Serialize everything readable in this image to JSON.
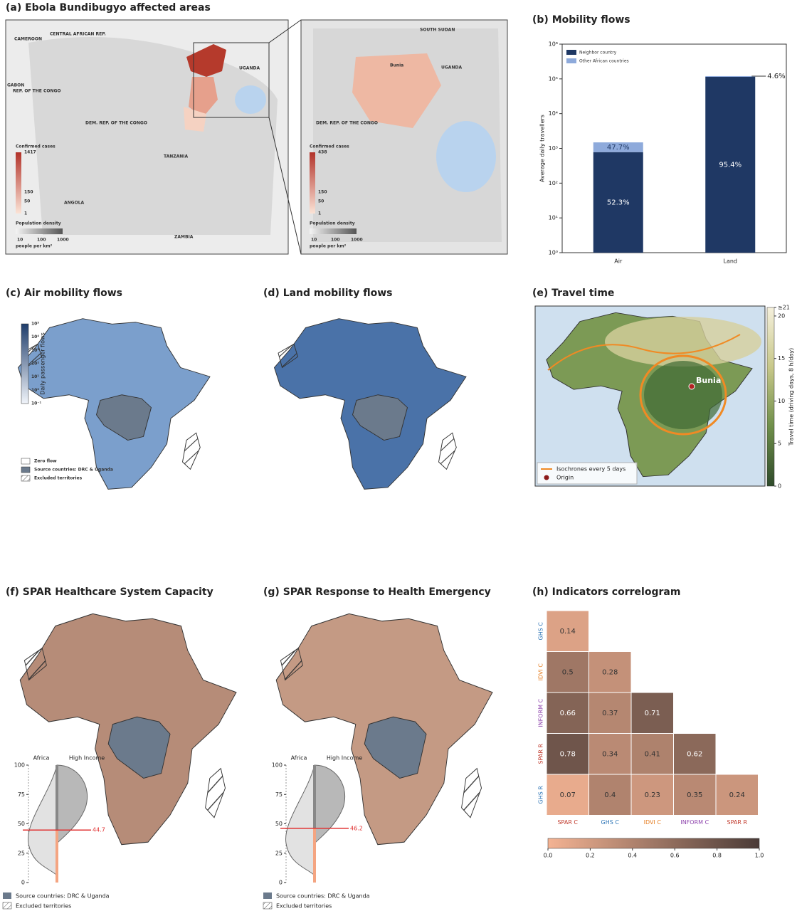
{
  "maps": {
    "a": {
      "title": "(a) Ebola Bundibugyo affected areas",
      "place_labels": [
        "CAMEROON",
        "CENTRAL AFRICAN REP.",
        "GABON",
        "REP. OF THE CONGO",
        "DEM. REP. OF THE CONGO",
        "UGANDA",
        "TANZANIA",
        "ANGOLA",
        "ZAMBIA"
      ],
      "inset_labels": [
        "DEM. REP. OF THE CONGO",
        "UGANDA",
        "SOUTH SUDAN",
        "Bunia"
      ],
      "cases_label": "Confirmed cases",
      "cases_ticks": [
        1417,
        150,
        50,
        1
      ],
      "inset_cases_ticks": [
        438,
        150,
        50,
        1
      ],
      "density_label": "Population density",
      "density_ticks": [
        10,
        100,
        1000
      ],
      "density_unit": "people per km²"
    },
    "c": {
      "title": "(c) Air mobility flows",
      "colorbar_label": "Daily passenger flows",
      "colorbar_ticks": [
        "10⁵",
        "10⁴",
        "10³",
        "10²",
        "10¹",
        "10⁰",
        "10⁻¹"
      ],
      "legend": [
        "Zero flow",
        "Source countries: DRC & Uganda",
        "Excluded territories"
      ]
    },
    "d": {
      "title": "(d) Land mobility flows"
    },
    "e": {
      "title": "(e) Travel time",
      "legend": [
        "Isochrones every 5 days",
        "Origin"
      ],
      "origin_label": "Bunia"
    },
    "f": {
      "title": "(f) SPAR Healthcare System Capacity",
      "legend": [
        "Source countries: DRC & Uganda",
        "Excluded territories"
      ]
    },
    "g": {
      "title": "(g) SPAR Response to Health Emergency",
      "legend": [
        "Source countries: DRC & Uganda",
        "Excluded territories"
      ]
    }
  },
  "chart_data": [
    {
      "type": "stacked_bar",
      "title": "(b) Mobility flows",
      "ylabel": "Average daily travellers",
      "categories": [
        "Air",
        "Land"
      ],
      "log": true,
      "legend": "upper left",
      "series": [
        {
          "name": "Neighbor country",
          "color": "#1f3864",
          "values": [
            780,
            114500
          ]
        },
        {
          "name": "Other African countries",
          "color": "#8eaadb",
          "values": [
            710,
            5500
          ]
        }
      ],
      "annotations": [
        "52.3%",
        "47.7%",
        "95.4%",
        "4.6%"
      ],
      "ylim": [
        1,
        1000000
      ],
      "yticks": [
        {
          "value": 1,
          "label": "10⁰"
        },
        {
          "value": 10,
          "label": "10¹"
        },
        {
          "value": 100,
          "label": "10²"
        },
        {
          "value": 1000,
          "label": "10³"
        },
        {
          "value": 10000,
          "label": "10⁴"
        },
        {
          "value": 100000,
          "label": "10⁵"
        },
        {
          "value": 1000000,
          "label": "10⁶"
        }
      ]
    },
    {
      "type": "colorbar",
      "ylabel": "Travel time  (driving days, 8 h/day)",
      "ylim": [
        0,
        21
      ],
      "yticks": [
        0,
        5,
        10,
        15,
        20,
        {
          "value": 21,
          "label": "≥21"
        }
      ],
      "colors": [
        "#2e4a2a",
        "#6f8f4a",
        "#c8c88a",
        "#f5f0dc"
      ]
    },
    {
      "type": "violin",
      "categories": [
        "Africa",
        "High Income"
      ],
      "ylim": [
        0,
        100
      ],
      "yticks": [
        0,
        25,
        50,
        75,
        100
      ],
      "reference_value": 44.7,
      "reference_color": "#e03030"
    },
    {
      "type": "violin",
      "categories": [
        "Africa",
        "High Income"
      ],
      "ylim": [
        0,
        100
      ],
      "yticks": [
        0,
        25,
        50,
        75,
        100
      ],
      "reference_value": 46.2,
      "reference_color": "#e03030"
    },
    {
      "type": "heatmap",
      "title": "(h) Indicators correlogram",
      "x_categories": [
        "SPAR C",
        "GHS C",
        "IDVI C",
        "INFORM C",
        "SPAR R"
      ],
      "y_categories": [
        "GHS C",
        "IDVI C",
        "INFORM C",
        "SPAR R",
        "GHS R"
      ],
      "x_label_colors": [
        "#c0392b",
        "#2e75b6",
        "#e67e22",
        "#8e44ad",
        "#c0392b"
      ],
      "y_label_colors": [
        "#2e75b6",
        "#e67e22",
        "#8e44ad",
        "#c0392b",
        "#2e75b6"
      ],
      "values": [
        [
          0.14,
          null,
          null,
          null,
          null
        ],
        [
          0.5,
          0.28,
          null,
          null,
          null
        ],
        [
          0.66,
          0.37,
          0.71,
          null,
          null
        ],
        [
          0.78,
          0.34,
          0.41,
          0.62,
          null
        ],
        [
          0.07,
          0.4,
          0.23,
          0.35,
          0.24
        ]
      ],
      "colors": [
        "#f4b393",
        "#4a3b37"
      ],
      "zlim": [
        0,
        1
      ],
      "zticks": [
        {
          "value": 0,
          "label": "0.0"
        },
        {
          "value": 0.2,
          "label": "0.2"
        },
        {
          "value": 0.4,
          "label": "0.4"
        },
        {
          "value": 0.6,
          "label": "0.6"
        },
        {
          "value": 0.8,
          "label": "0.8"
        },
        {
          "value": 1,
          "label": "1.0"
        }
      ]
    }
  ]
}
